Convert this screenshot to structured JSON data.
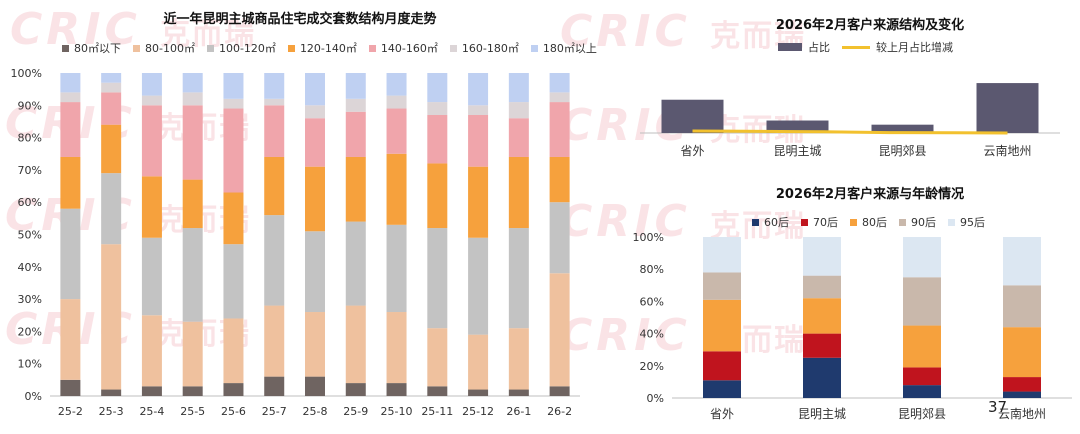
{
  "watermark": {
    "brand": "CRIC",
    "cn": "克而瑞"
  },
  "page_number": "37",
  "chart_data": [
    {
      "id": "left",
      "type": "bar",
      "stacked": true,
      "title": "近一年昆明主城商品住宅成交套数结构月度走势",
      "categories": [
        "25-2",
        "25-3",
        "25-4",
        "25-5",
        "25-6",
        "25-7",
        "25-8",
        "25-9",
        "25-10",
        "25-11",
        "25-12",
        "26-1",
        "26-2"
      ],
      "ylim": [
        0,
        100
      ],
      "yticks": [
        "0%",
        "10%",
        "20%",
        "30%",
        "40%",
        "50%",
        "60%",
        "70%",
        "80%",
        "90%",
        "100%"
      ],
      "series": [
        {
          "name": "80㎡以下",
          "color": "#6f6461",
          "values": [
            5,
            2,
            3,
            3,
            4,
            6,
            6,
            4,
            4,
            3,
            2,
            2,
            3
          ]
        },
        {
          "name": "80-100㎡",
          "color": "#efc19e",
          "values": [
            25,
            45,
            22,
            20,
            20,
            22,
            20,
            24,
            22,
            18,
            17,
            19,
            35
          ]
        },
        {
          "name": "100-120㎡",
          "color": "#c3c3c3",
          "values": [
            28,
            22,
            24,
            29,
            23,
            28,
            25,
            26,
            27,
            31,
            30,
            31,
            22
          ]
        },
        {
          "name": "120-140㎡",
          "color": "#f6a13d",
          "values": [
            16,
            15,
            19,
            15,
            16,
            18,
            20,
            20,
            22,
            20,
            22,
            22,
            14
          ]
        },
        {
          "name": "140-160㎡",
          "color": "#f0a5ab",
          "values": [
            17,
            10,
            22,
            23,
            26,
            16,
            15,
            14,
            14,
            15,
            16,
            12,
            17
          ]
        },
        {
          "name": "160-180㎡",
          "color": "#dcd5d7",
          "values": [
            3,
            3,
            3,
            4,
            3,
            2,
            4,
            4,
            4,
            4,
            3,
            5,
            3
          ]
        },
        {
          "name": "180㎡以上",
          "color": "#bfd0f2",
          "values": [
            6,
            3,
            7,
            6,
            8,
            8,
            10,
            8,
            7,
            9,
            10,
            9,
            6
          ]
        }
      ]
    },
    {
      "id": "top-right",
      "type": "bar",
      "title": "2026年2月客户来源结构及变化",
      "categories": [
        "省外",
        "昆明主城",
        "昆明郊县",
        "云南地州"
      ],
      "series": [
        {
          "name": "占比",
          "color": "#5b5870",
          "kind": "bar",
          "values": [
            32,
            12,
            8,
            48
          ]
        },
        {
          "name": "较上月占比增减",
          "color": "#f2c12e",
          "kind": "line",
          "values": [
            0.5,
            0.2,
            -0.3,
            -0.5
          ]
        }
      ]
    },
    {
      "id": "bottom-right",
      "type": "bar",
      "stacked": true,
      "title": "2026年2月客户来源与年龄情况",
      "categories": [
        "省外",
        "昆明主城",
        "昆明郊县",
        "云南地州"
      ],
      "ylim": [
        0,
        100
      ],
      "yticks": [
        "0%",
        "20%",
        "40%",
        "60%",
        "80%",
        "100%"
      ],
      "series": [
        {
          "name": "60后",
          "color": "#1f3a6e",
          "values": [
            11,
            25,
            8,
            4
          ]
        },
        {
          "name": "70后",
          "color": "#c0141e",
          "values": [
            18,
            15,
            11,
            9
          ]
        },
        {
          "name": "80后",
          "color": "#f6a13d",
          "values": [
            32,
            22,
            26,
            31
          ]
        },
        {
          "name": "90后",
          "color": "#c9b8ab",
          "values": [
            17,
            14,
            30,
            26
          ]
        },
        {
          "name": "95后",
          "color": "#dce7f2",
          "values": [
            22,
            24,
            25,
            30
          ]
        }
      ]
    }
  ]
}
